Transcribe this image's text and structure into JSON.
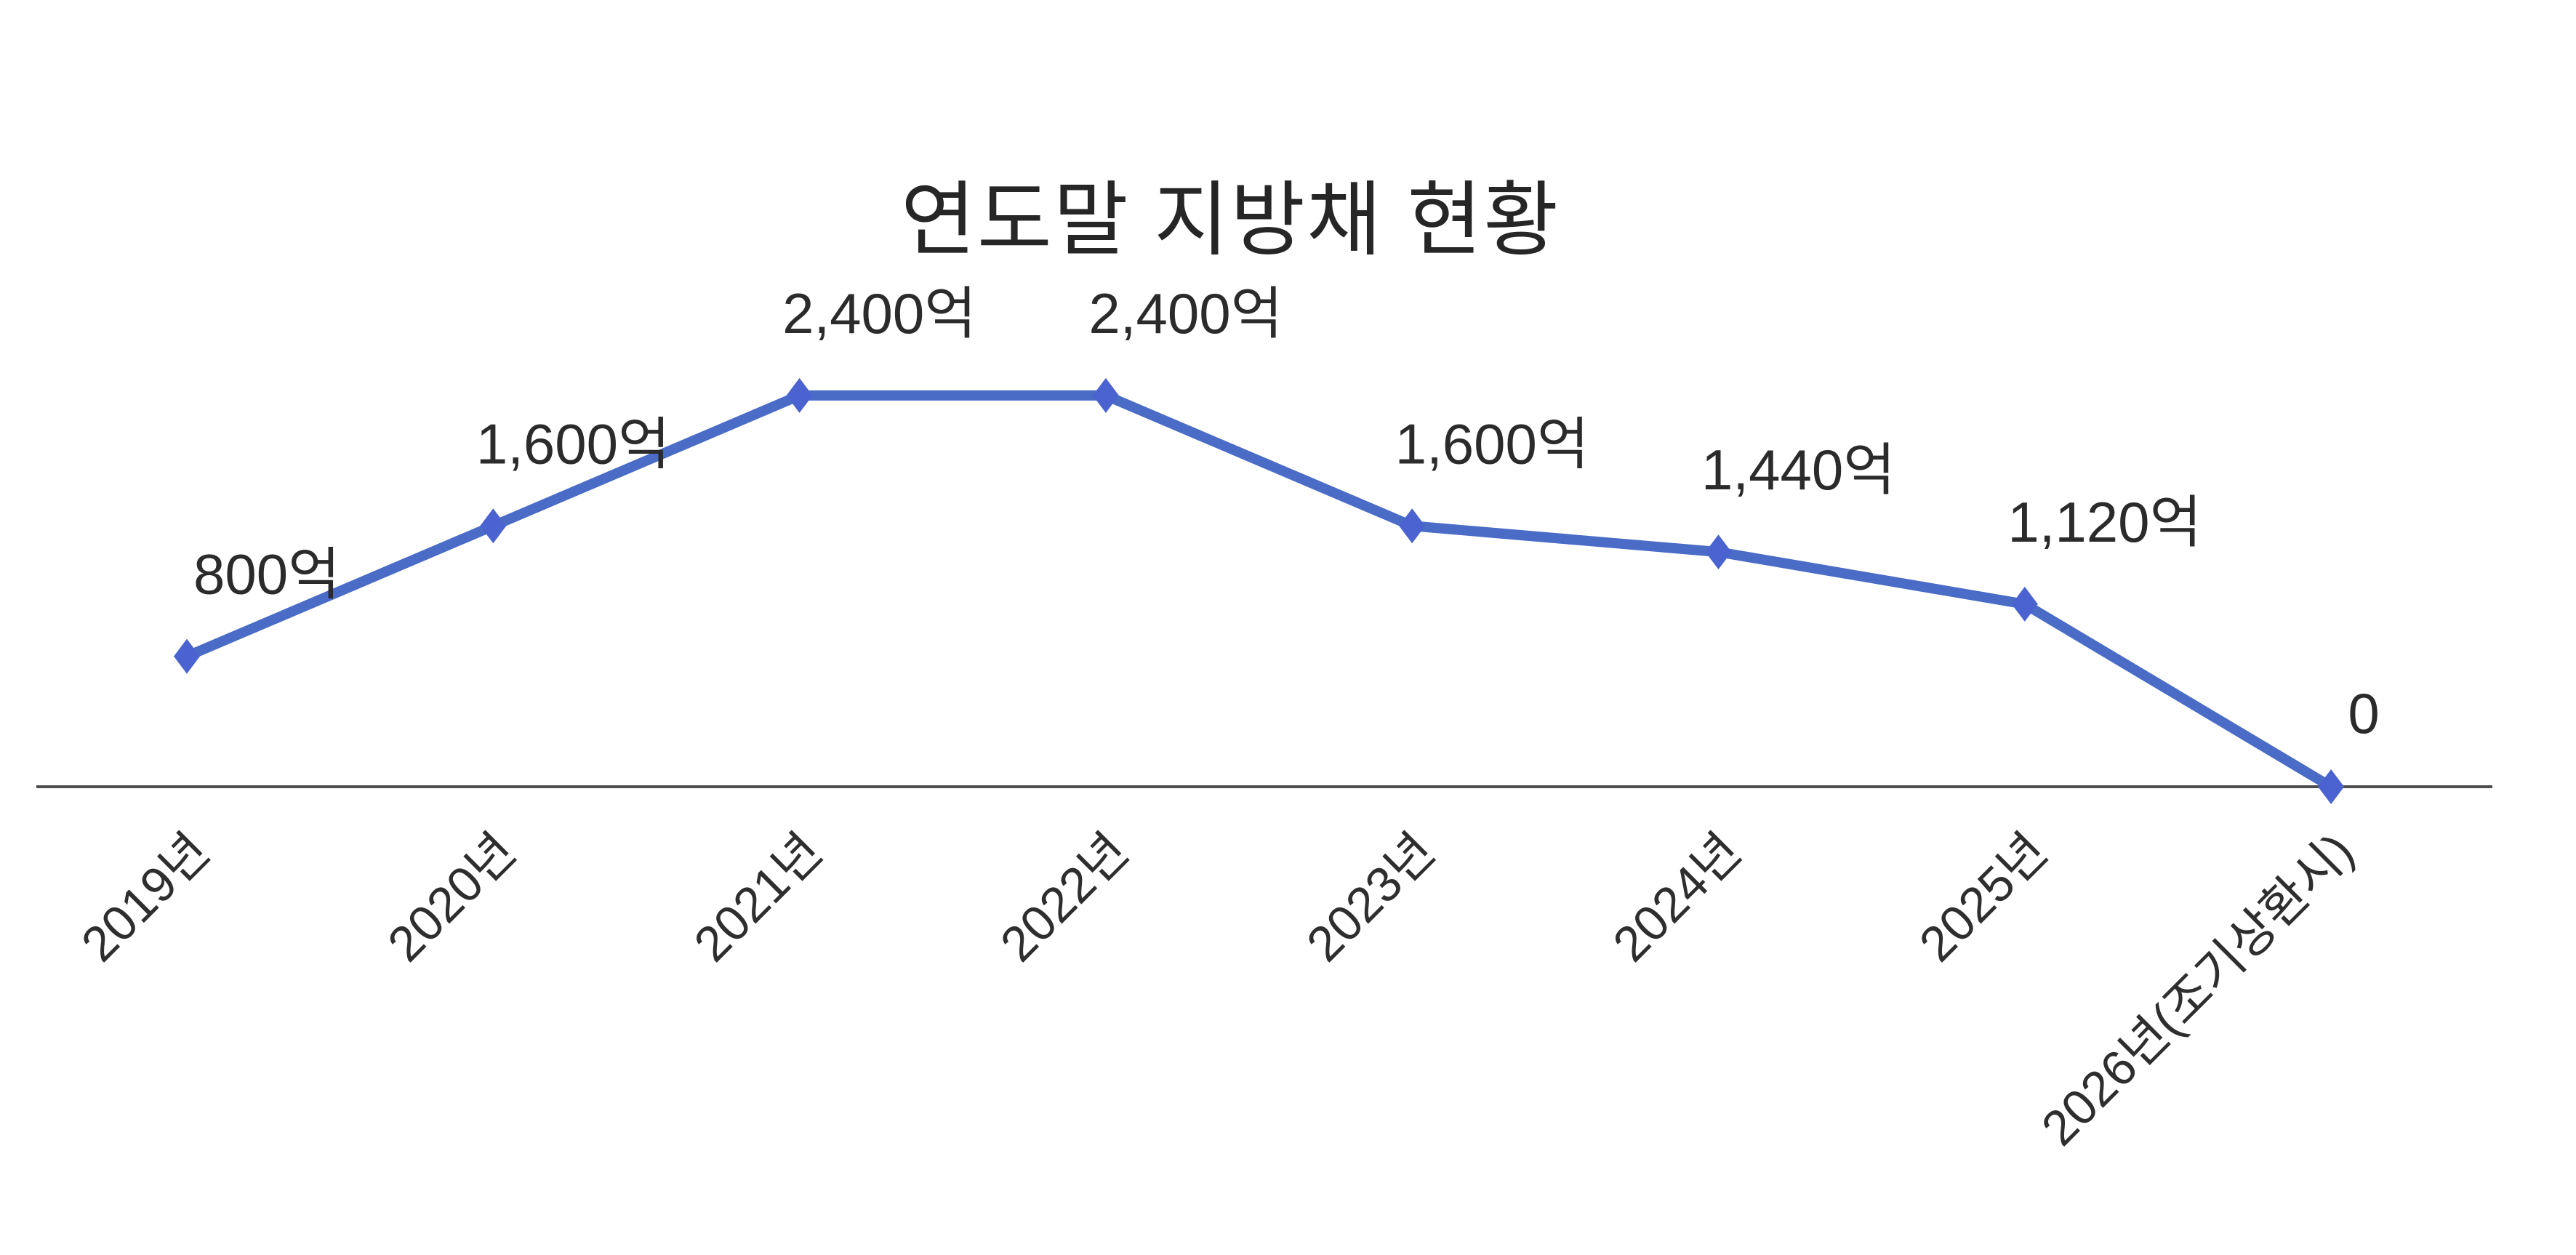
{
  "chart_data": {
    "type": "line",
    "title": "연도말 지방채 현황",
    "categories": [
      "2019년",
      "2020년",
      "2021년",
      "2022년",
      "2023년",
      "2024년",
      "2025년",
      "2026년(조기상환시)"
    ],
    "values": [
      800,
      1600,
      2400,
      2400,
      1600,
      1440,
      1120,
      0
    ],
    "data_labels": [
      "800억",
      "1,600억",
      "2,400억",
      "2,400억",
      "1,600억",
      "1,440억",
      "1,120억",
      "0"
    ],
    "unit": "억",
    "xlabel": "",
    "ylabel": "",
    "ylim": [
      0,
      2500
    ],
    "grid": false,
    "legend": "none",
    "y_axis_visible": false,
    "x_tick_rotation_deg": -45,
    "marker_shape": "diamond",
    "colors": {
      "line": "#4a6cc6",
      "marker": "#4a63d0",
      "axis": "#4d4d4d",
      "data_label": "#2b2b2b",
      "tick_label": "#2e2e2e",
      "title": "#262626",
      "background": "#ffffff"
    }
  }
}
